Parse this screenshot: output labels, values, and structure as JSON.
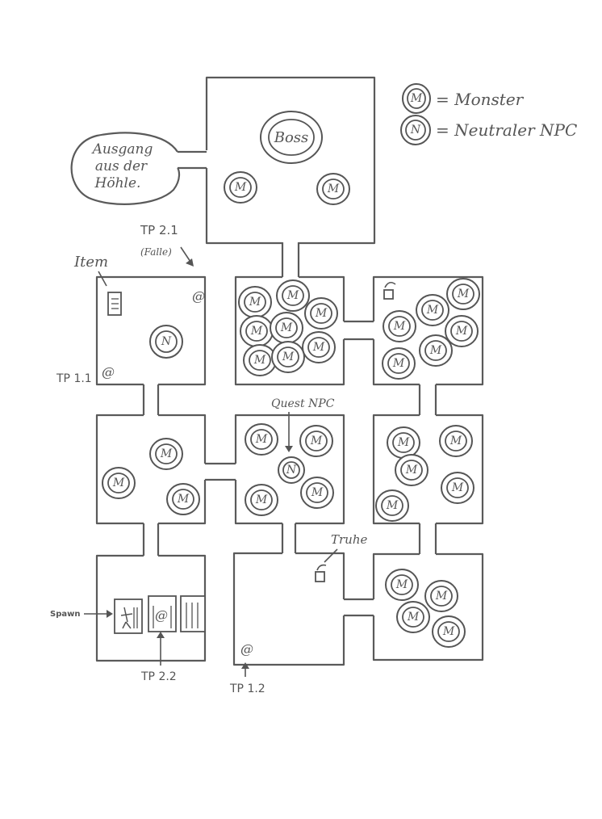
{
  "legend": {
    "monster_symbol": "M",
    "monster_text": "= Monster",
    "npc_symbol": "N",
    "npc_text": "= Neutraler NPC"
  },
  "labels": {
    "exit_line1": "Ausgang",
    "exit_line2": "aus der",
    "exit_line3": "Höhle.",
    "boss": "Boss",
    "item": "Item",
    "tp21": "TP 2.1",
    "tp21_note": "(Falle)",
    "tp11": "TP 1.1",
    "quest_npc": "Quest NPC",
    "truhe": "Truhe",
    "spawn": "Spawn",
    "tp22": "TP 2.2",
    "tp12": "TP 1.2"
  },
  "tokens": {
    "monster": "M",
    "npc": "N",
    "portal": "@"
  }
}
